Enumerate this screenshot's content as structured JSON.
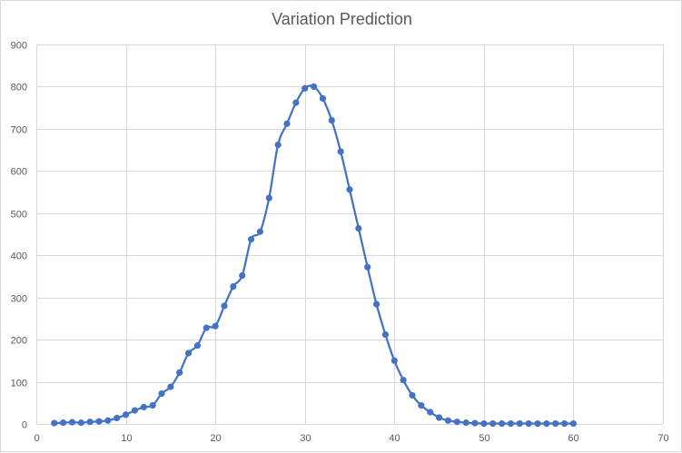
{
  "chart_data": {
    "type": "line",
    "title": "Variation Prediction",
    "xlabel": "",
    "ylabel": "",
    "xlim": [
      0,
      70
    ],
    "ylim": [
      0,
      900
    ],
    "x_ticks": [
      0,
      10,
      20,
      30,
      40,
      50,
      60,
      70
    ],
    "y_ticks": [
      0,
      100,
      200,
      300,
      400,
      500,
      600,
      700,
      800,
      900
    ],
    "grid": true,
    "series": [
      {
        "name": "Variation Prediction",
        "color": "#4472c4",
        "smooth": true,
        "markers": true,
        "x": [
          2,
          3,
          4,
          5,
          6,
          7,
          8,
          9,
          10,
          11,
          12,
          13,
          14,
          15,
          16,
          17,
          18,
          19,
          20,
          21,
          22,
          23,
          24,
          25,
          26,
          27,
          28,
          29,
          30,
          31,
          32,
          33,
          34,
          35,
          36,
          37,
          38,
          39,
          40,
          41,
          42,
          43,
          44,
          45,
          46,
          47,
          48,
          49,
          50,
          51,
          52,
          53,
          54,
          55,
          56,
          57,
          58,
          59,
          60
        ],
        "y": [
          2,
          3,
          4,
          3,
          5,
          6,
          8,
          14,
          22,
          32,
          40,
          44,
          72,
          88,
          122,
          168,
          186,
          228,
          232,
          280,
          326,
          352,
          438,
          456,
          536,
          662,
          712,
          762,
          796,
          800,
          772,
          720,
          646,
          556,
          464,
          372,
          284,
          212,
          150,
          104,
          68,
          44,
          28,
          15,
          8,
          5,
          3,
          2,
          1,
          1,
          1,
          1,
          1,
          1,
          1,
          1,
          1,
          1,
          1
        ]
      }
    ]
  }
}
